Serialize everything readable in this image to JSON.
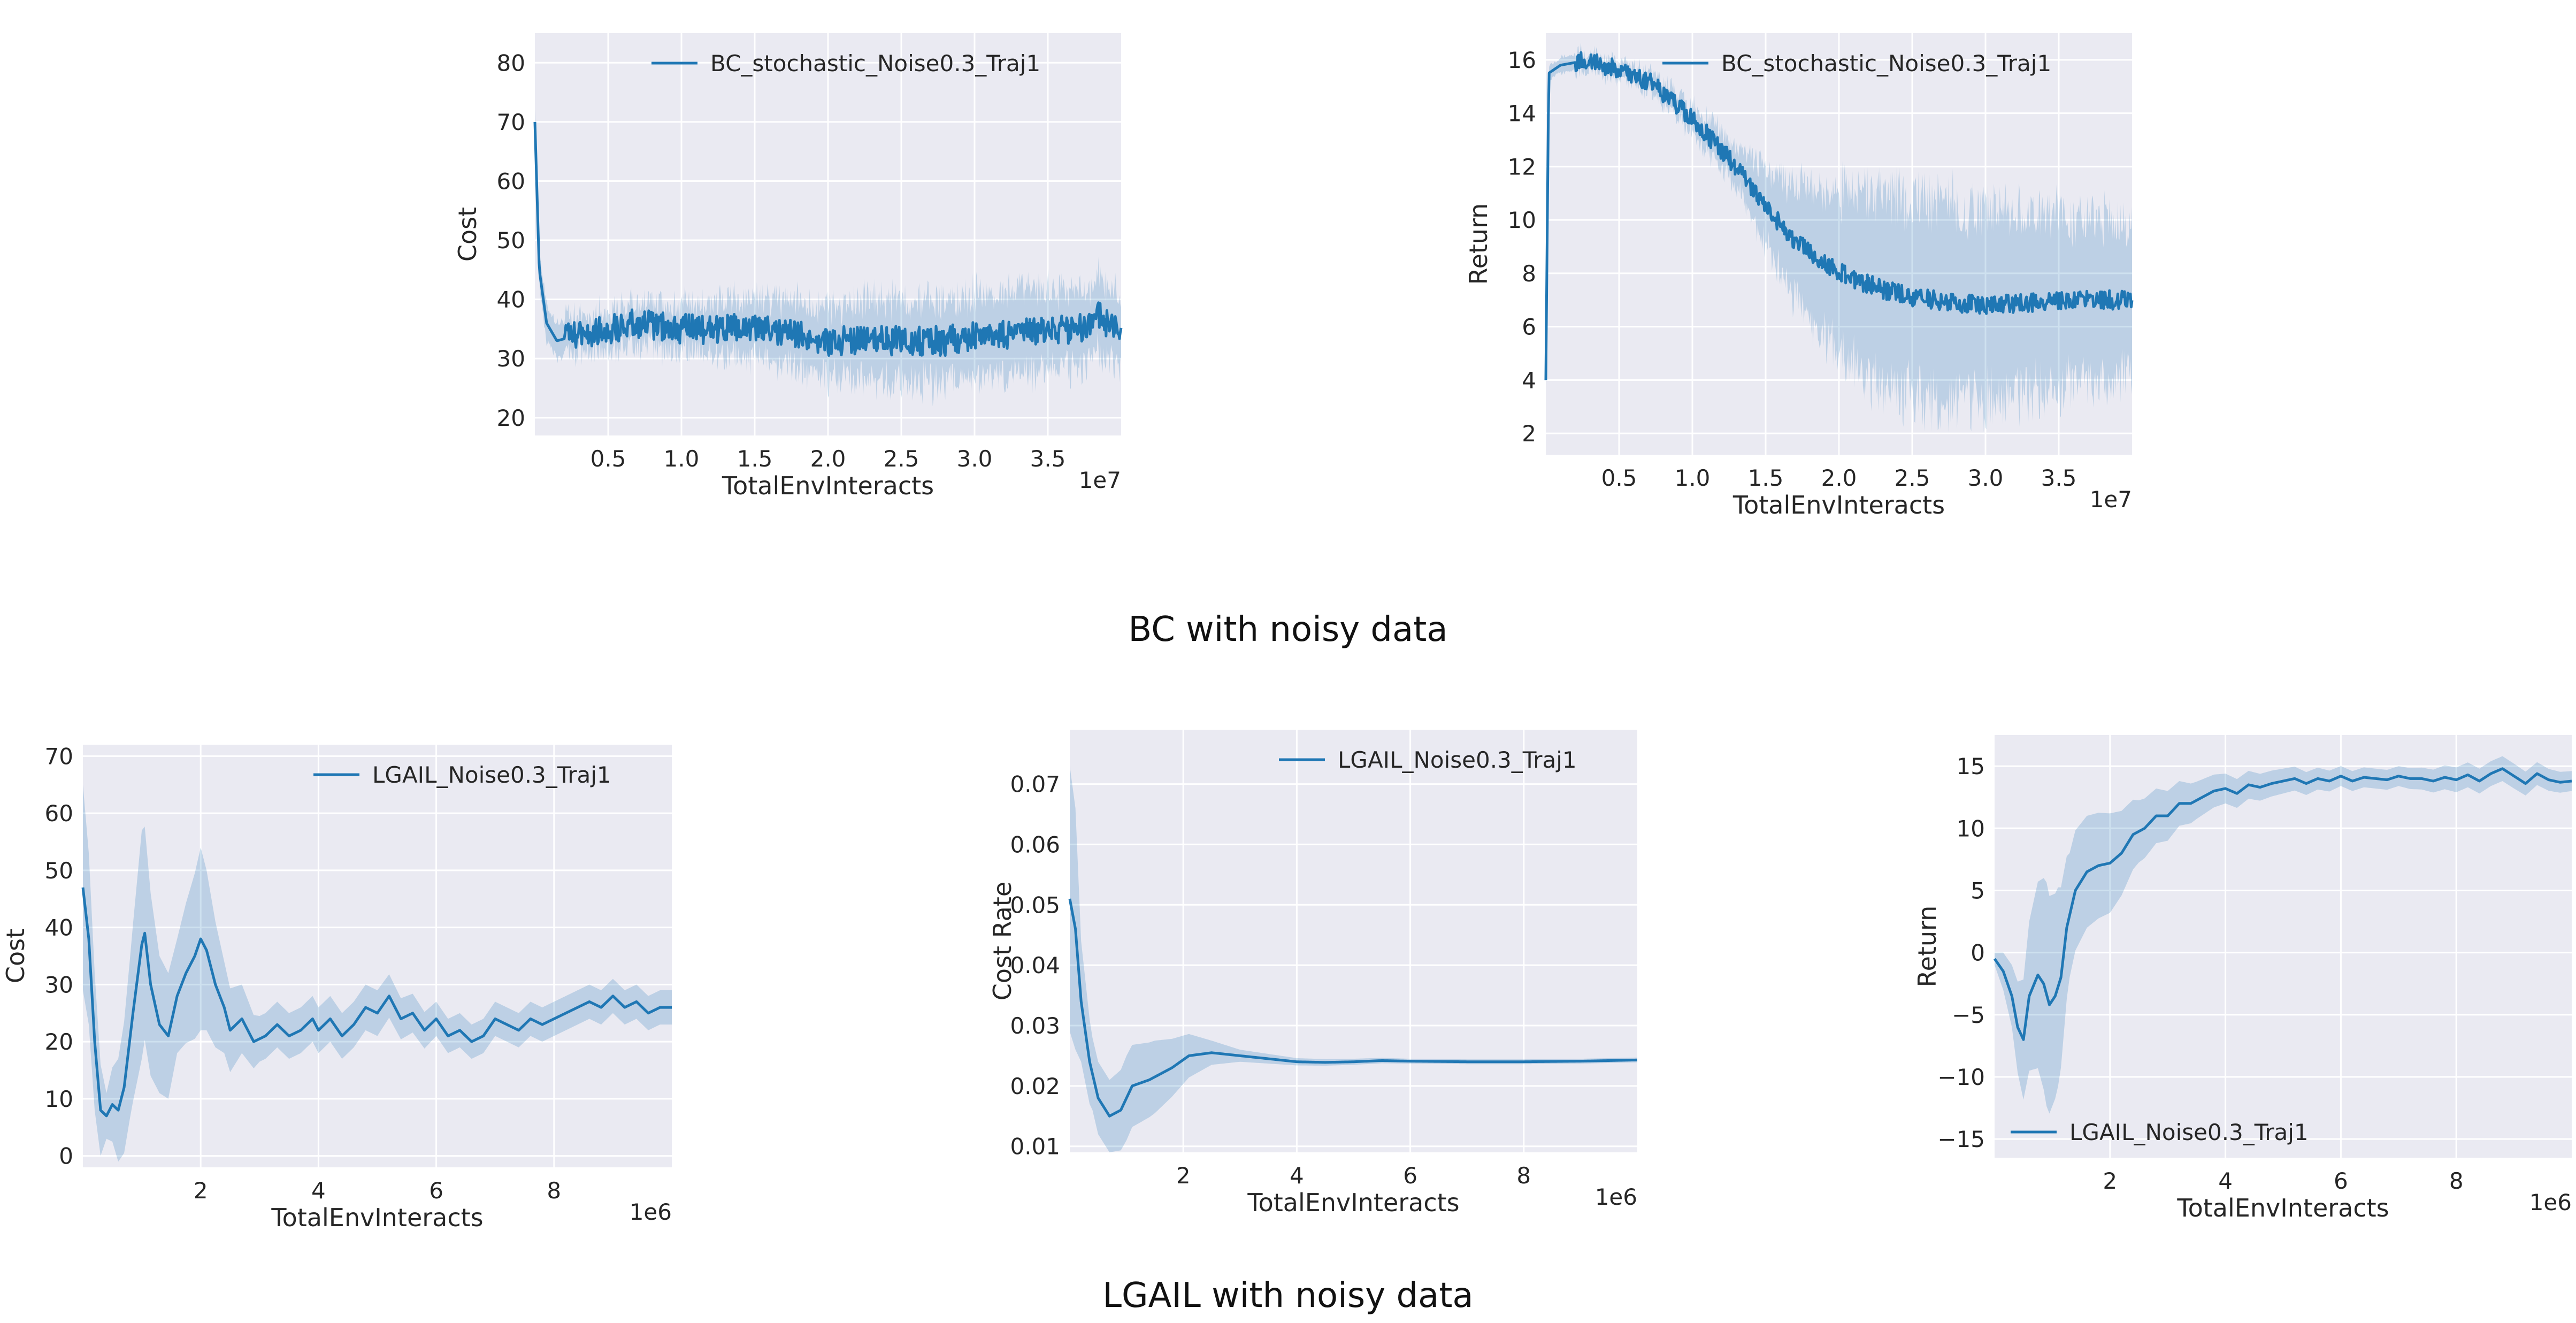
{
  "captions": [
    "BC with noisy data",
    "LGAIL with noisy data"
  ],
  "colors": {
    "line": "#1f77b4",
    "band": "#1f77b4",
    "plot_bg": "#eaeaf2",
    "grid": "#ffffff"
  },
  "chart_data": [
    {
      "type": "line",
      "ylabel": "Cost",
      "xlabel": "TotalEnvInteracts",
      "x_offset_label": "1e7",
      "legend": "BC_stochastic_Noise0.3_Traj1",
      "legend_position": "upper right",
      "grid": true,
      "xlim": [
        0,
        4.0
      ],
      "ylim": [
        17,
        85
      ],
      "xticks": [
        0.5,
        1.0,
        1.5,
        2.0,
        2.5,
        3.0,
        3.5
      ],
      "xtick_labels": [
        "0.5",
        "1.0",
        "1.5",
        "2.0",
        "2.5",
        "3.0",
        "3.5"
      ],
      "yticks": [
        20,
        30,
        40,
        50,
        60,
        70,
        80
      ],
      "ytick_labels": [
        "20",
        "30",
        "40",
        "50",
        "60",
        "70",
        "80"
      ],
      "noisy": true,
      "points": [
        [
          0.0,
          70
        ],
        [
          0.03,
          45
        ],
        [
          0.08,
          36
        ],
        [
          0.15,
          33
        ],
        [
          0.3,
          34
        ],
        [
          0.5,
          35
        ],
        [
          0.7,
          36
        ],
        [
          1.0,
          35
        ],
        [
          1.3,
          35
        ],
        [
          1.5,
          35
        ],
        [
          1.8,
          34
        ],
        [
          2.0,
          33
        ],
        [
          2.3,
          33
        ],
        [
          2.5,
          33
        ],
        [
          2.8,
          33
        ],
        [
          3.0,
          34
        ],
        [
          3.3,
          34
        ],
        [
          3.5,
          35
        ],
        [
          3.7,
          35
        ],
        [
          3.85,
          37
        ],
        [
          4.0,
          34
        ]
      ],
      "band": [
        [
          0.0,
          3
        ],
        [
          0.5,
          3
        ],
        [
          1.0,
          4
        ],
        [
          1.5,
          5
        ],
        [
          2.0,
          6
        ],
        [
          2.5,
          7
        ],
        [
          3.0,
          7
        ],
        [
          3.5,
          7
        ],
        [
          4.0,
          6
        ]
      ],
      "noise_amp": 2.5
    },
    {
      "type": "line",
      "ylabel": "Return",
      "xlabel": "TotalEnvInteracts",
      "x_offset_label": "1e7",
      "legend": "BC_stochastic_Noise0.3_Traj1",
      "legend_position": "upper right",
      "grid": true,
      "xlim": [
        0,
        4.0
      ],
      "ylim": [
        1.2,
        17.0
      ],
      "xticks": [
        0.5,
        1.0,
        1.5,
        2.0,
        2.5,
        3.0,
        3.5
      ],
      "xtick_labels": [
        "0.5",
        "1.0",
        "1.5",
        "2.0",
        "2.5",
        "3.0",
        "3.5"
      ],
      "yticks": [
        2,
        4,
        6,
        8,
        10,
        12,
        14,
        16
      ],
      "ytick_labels": [
        "2",
        "4",
        "6",
        "8",
        "10",
        "12",
        "14",
        "16"
      ],
      "noisy": true,
      "points": [
        [
          0.0,
          4
        ],
        [
          0.02,
          15.5
        ],
        [
          0.1,
          15.8
        ],
        [
          0.3,
          16.0
        ],
        [
          0.5,
          15.6
        ],
        [
          0.7,
          15.2
        ],
        [
          0.9,
          14.3
        ],
        [
          1.1,
          13.2
        ],
        [
          1.3,
          12.0
        ],
        [
          1.5,
          10.5
        ],
        [
          1.7,
          9.2
        ],
        [
          1.9,
          8.4
        ],
        [
          2.1,
          7.8
        ],
        [
          2.3,
          7.4
        ],
        [
          2.5,
          7.1
        ],
        [
          2.8,
          6.9
        ],
        [
          3.0,
          6.8
        ],
        [
          3.3,
          6.9
        ],
        [
          3.6,
          7.0
        ],
        [
          3.8,
          7.0
        ],
        [
          4.0,
          7.0
        ]
      ],
      "band": [
        [
          0.0,
          0.3
        ],
        [
          0.5,
          0.3
        ],
        [
          1.0,
          0.5
        ],
        [
          1.3,
          0.8
        ],
        [
          1.5,
          1.4
        ],
        [
          1.8,
          2.5
        ],
        [
          2.2,
          3.4
        ],
        [
          2.6,
          3.8
        ],
        [
          3.0,
          3.6
        ],
        [
          3.5,
          3.2
        ],
        [
          4.0,
          2.8
        ]
      ],
      "noise_amp": 0.35
    },
    {
      "type": "line",
      "ylabel": "Cost",
      "xlabel": "TotalEnvInteracts",
      "x_offset_label": "1e6",
      "legend": "LGAIL_Noise0.3_Traj1",
      "legend_position": "upper right",
      "grid": true,
      "xlim": [
        0,
        10.0
      ],
      "ylim": [
        -2,
        72
      ],
      "xticks": [
        2,
        4,
        6,
        8
      ],
      "xtick_labels": [
        "2",
        "4",
        "6",
        "8"
      ],
      "yticks": [
        0,
        10,
        20,
        30,
        40,
        50,
        60,
        70
      ],
      "ytick_labels": [
        "0",
        "10",
        "20",
        "30",
        "40",
        "50",
        "60",
        "70"
      ],
      "noisy": false,
      "points": [
        [
          0.0,
          47
        ],
        [
          0.1,
          38
        ],
        [
          0.2,
          20
        ],
        [
          0.3,
          8
        ],
        [
          0.4,
          7
        ],
        [
          0.5,
          9
        ],
        [
          0.6,
          8
        ],
        [
          0.7,
          12
        ],
        [
          0.85,
          25
        ],
        [
          1.0,
          37
        ],
        [
          1.05,
          39
        ],
        [
          1.15,
          30
        ],
        [
          1.3,
          23
        ],
        [
          1.45,
          21
        ],
        [
          1.6,
          28
        ],
        [
          1.75,
          32
        ],
        [
          1.9,
          35
        ],
        [
          2.0,
          38
        ],
        [
          2.1,
          36
        ],
        [
          2.25,
          30
        ],
        [
          2.4,
          26
        ],
        [
          2.5,
          22
        ],
        [
          2.7,
          24
        ],
        [
          2.9,
          20
        ],
        [
          3.1,
          21
        ],
        [
          3.3,
          23
        ],
        [
          3.5,
          21
        ],
        [
          3.7,
          22
        ],
        [
          3.9,
          24
        ],
        [
          4.0,
          22
        ],
        [
          4.2,
          24
        ],
        [
          4.4,
          21
        ],
        [
          4.6,
          23
        ],
        [
          4.8,
          26
        ],
        [
          5.0,
          25
        ],
        [
          5.2,
          28
        ],
        [
          5.4,
          24
        ],
        [
          5.6,
          25
        ],
        [
          5.8,
          22
        ],
        [
          6.0,
          24
        ],
        [
          6.2,
          21
        ],
        [
          6.4,
          22
        ],
        [
          6.6,
          20
        ],
        [
          6.8,
          21
        ],
        [
          7.0,
          24
        ],
        [
          7.2,
          23
        ],
        [
          7.4,
          22
        ],
        [
          7.6,
          24
        ],
        [
          7.8,
          23
        ],
        [
          8.0,
          24
        ],
        [
          8.2,
          25
        ],
        [
          8.4,
          26
        ],
        [
          8.6,
          27
        ],
        [
          8.8,
          26
        ],
        [
          9.0,
          28
        ],
        [
          9.2,
          26
        ],
        [
          9.4,
          27
        ],
        [
          9.6,
          25
        ],
        [
          9.8,
          26
        ],
        [
          10.0,
          26
        ]
      ],
      "band": [
        [
          0.0,
          18
        ],
        [
          0.2,
          12
        ],
        [
          0.4,
          4
        ],
        [
          0.8,
          14
        ],
        [
          1.0,
          20
        ],
        [
          1.3,
          12
        ],
        [
          1.6,
          10
        ],
        [
          2.0,
          16
        ],
        [
          2.4,
          8
        ],
        [
          3.0,
          4
        ],
        [
          4.0,
          4
        ],
        [
          5.0,
          4
        ],
        [
          6.0,
          3
        ],
        [
          7.0,
          3
        ],
        [
          8.0,
          3
        ],
        [
          9.0,
          3
        ],
        [
          10.0,
          3
        ]
      ],
      "noise_amp": 0
    },
    {
      "type": "line",
      "ylabel": "Cost Rate",
      "xlabel": "TotalEnvInteracts",
      "x_offset_label": "1e6",
      "legend": "LGAIL_Noise0.3_Traj1",
      "legend_position": "upper right",
      "grid": true,
      "xlim": [
        0,
        10.0
      ],
      "ylim": [
        0.009,
        0.079
      ],
      "xticks": [
        2,
        4,
        6,
        8
      ],
      "xtick_labels": [
        "2",
        "4",
        "6",
        "8"
      ],
      "yticks": [
        0.01,
        0.02,
        0.03,
        0.04,
        0.05,
        0.06,
        0.07
      ],
      "ytick_labels": [
        "0.01",
        "0.02",
        "0.03",
        "0.04",
        "0.05",
        "0.06",
        "0.07"
      ],
      "noisy": false,
      "points": [
        [
          0.0,
          0.051
        ],
        [
          0.1,
          0.046
        ],
        [
          0.2,
          0.034
        ],
        [
          0.35,
          0.024
        ],
        [
          0.5,
          0.018
        ],
        [
          0.7,
          0.015
        ],
        [
          0.9,
          0.016
        ],
        [
          1.1,
          0.02
        ],
        [
          1.4,
          0.021
        ],
        [
          1.8,
          0.023
        ],
        [
          2.1,
          0.025
        ],
        [
          2.5,
          0.0255
        ],
        [
          3.0,
          0.025
        ],
        [
          3.5,
          0.0245
        ],
        [
          4.0,
          0.024
        ],
        [
          4.5,
          0.0239
        ],
        [
          5.0,
          0.024
        ],
        [
          5.5,
          0.0242
        ],
        [
          6.0,
          0.0241
        ],
        [
          7.0,
          0.024
        ],
        [
          8.0,
          0.024
        ],
        [
          9.0,
          0.0241
        ],
        [
          10.0,
          0.0243
        ]
      ],
      "band": [
        [
          0.0,
          0.022
        ],
        [
          0.1,
          0.02
        ],
        [
          0.2,
          0.01
        ],
        [
          0.4,
          0.006
        ],
        [
          0.7,
          0.006
        ],
        [
          1.0,
          0.007
        ],
        [
          1.5,
          0.006
        ],
        [
          2.0,
          0.004
        ],
        [
          2.5,
          0.002
        ],
        [
          3.0,
          0.001
        ],
        [
          4.0,
          0.0006
        ],
        [
          6.0,
          0.0004
        ],
        [
          8.0,
          0.0004
        ],
        [
          10.0,
          0.0004
        ]
      ],
      "noise_amp": 0
    },
    {
      "type": "line",
      "ylabel": "Return",
      "xlabel": "TotalEnvInteracts",
      "x_offset_label": "1e6",
      "legend": "LGAIL_Noise0.3_Traj1",
      "legend_position": "lower left",
      "grid": true,
      "xlim": [
        0,
        10.0
      ],
      "ylim": [
        -16.5,
        17.5
      ],
      "xticks": [
        2,
        4,
        6,
        8
      ],
      "xtick_labels": [
        "2",
        "4",
        "6",
        "8"
      ],
      "yticks": [
        -15,
        -10,
        -5,
        0,
        5,
        10,
        15
      ],
      "ytick_labels": [
        "−15",
        "−10",
        "−5",
        "0",
        "5",
        "10",
        "15"
      ],
      "noisy": false,
      "points": [
        [
          0.0,
          -0.5
        ],
        [
          0.15,
          -1.5
        ],
        [
          0.3,
          -3.5
        ],
        [
          0.4,
          -6
        ],
        [
          0.5,
          -7
        ],
        [
          0.6,
          -3.5
        ],
        [
          0.75,
          -1.8
        ],
        [
          0.85,
          -2.5
        ],
        [
          0.95,
          -4.2
        ],
        [
          1.05,
          -3.5
        ],
        [
          1.15,
          -2
        ],
        [
          1.25,
          2
        ],
        [
          1.4,
          5
        ],
        [
          1.6,
          6.5
        ],
        [
          1.8,
          7
        ],
        [
          2.0,
          7.2
        ],
        [
          2.2,
          8
        ],
        [
          2.4,
          9.5
        ],
        [
          2.6,
          10
        ],
        [
          2.8,
          11
        ],
        [
          3.0,
          11
        ],
        [
          3.2,
          12
        ],
        [
          3.4,
          12
        ],
        [
          3.6,
          12.5
        ],
        [
          3.8,
          13
        ],
        [
          4.0,
          13.2
        ],
        [
          4.2,
          12.8
        ],
        [
          4.4,
          13.5
        ],
        [
          4.6,
          13.3
        ],
        [
          4.8,
          13.6
        ],
        [
          5.0,
          13.8
        ],
        [
          5.2,
          14
        ],
        [
          5.4,
          13.6
        ],
        [
          5.6,
          14
        ],
        [
          5.8,
          13.8
        ],
        [
          6.0,
          14.2
        ],
        [
          6.2,
          13.8
        ],
        [
          6.4,
          14.1
        ],
        [
          6.6,
          14
        ],
        [
          6.8,
          13.9
        ],
        [
          7.0,
          14.2
        ],
        [
          7.2,
          14
        ],
        [
          7.4,
          14
        ],
        [
          7.6,
          13.8
        ],
        [
          7.8,
          14.1
        ],
        [
          8.0,
          13.9
        ],
        [
          8.2,
          14.3
        ],
        [
          8.4,
          13.8
        ],
        [
          8.6,
          14.4
        ],
        [
          8.8,
          14.8
        ],
        [
          9.0,
          14.2
        ],
        [
          9.2,
          13.6
        ],
        [
          9.4,
          14.4
        ],
        [
          9.6,
          13.9
        ],
        [
          9.8,
          13.7
        ],
        [
          10.0,
          13.8
        ]
      ],
      "band": [
        [
          0.0,
          0.5
        ],
        [
          0.3,
          2.5
        ],
        [
          0.6,
          6
        ],
        [
          0.9,
          9
        ],
        [
          1.1,
          8
        ],
        [
          1.3,
          5
        ],
        [
          1.6,
          4.5
        ],
        [
          2.0,
          4
        ],
        [
          2.5,
          2.5
        ],
        [
          3.0,
          2
        ],
        [
          3.5,
          1.5
        ],
        [
          4.0,
          1.2
        ],
        [
          5.0,
          1
        ],
        [
          6.0,
          0.8
        ],
        [
          7.0,
          0.8
        ],
        [
          8.0,
          1
        ],
        [
          9.0,
          1
        ],
        [
          10.0,
          0.8
        ]
      ],
      "noise_amp": 0
    }
  ]
}
